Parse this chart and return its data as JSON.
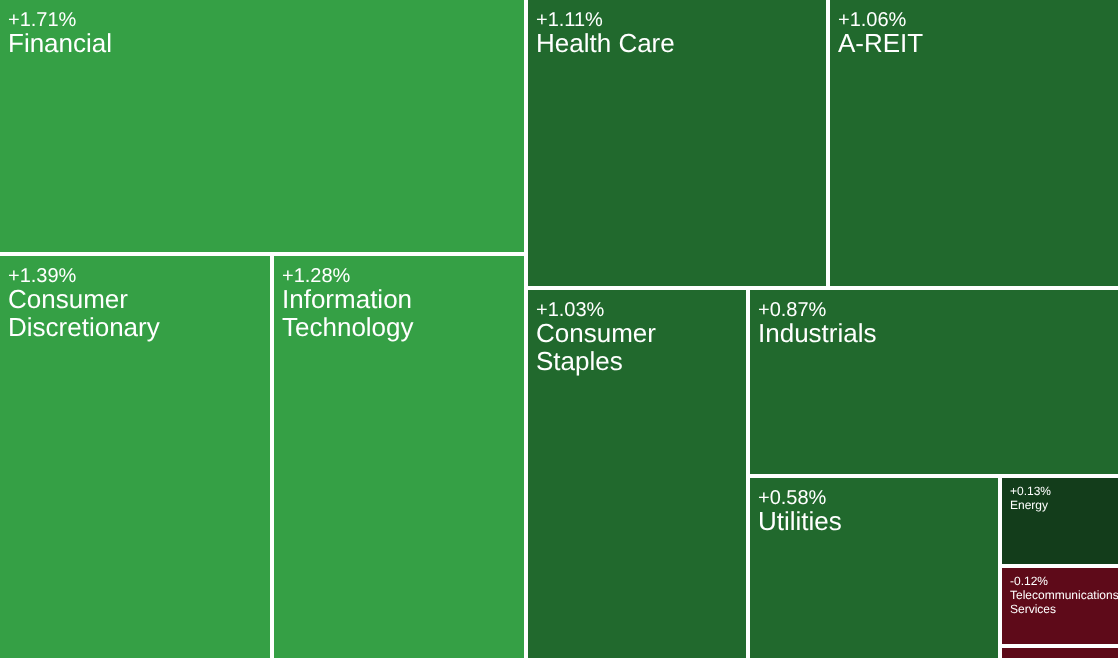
{
  "chart_data": {
    "type": "other",
    "categories": [
      "Financial",
      "Consumer Discretionary",
      "Information Technology",
      "Health Care",
      "A-REIT",
      "Consumer Staples",
      "Industrials",
      "Utilities",
      "Energy",
      "Telecommunications Services"
    ],
    "values": [
      1.71,
      1.39,
      1.28,
      1.11,
      1.06,
      1.03,
      0.87,
      0.58,
      0.13,
      -0.12
    ],
    "value_labels": [
      "+1.71%",
      "+1.39%",
      "+1.28%",
      "+1.11%",
      "+1.06%",
      "+1.03%",
      "+0.87%",
      "+0.58%",
      "+0.13%",
      "-0.12%"
    ],
    "colors": [
      "#35a045",
      "#35a045",
      "#35a045",
      "#21692d",
      "#21692d",
      "#21692d",
      "#21692d",
      "#21692d",
      "#133d1b",
      "#5e0a19"
    ]
  }
}
